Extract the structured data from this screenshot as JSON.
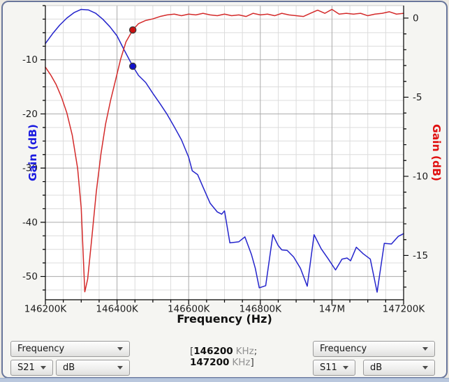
{
  "window": {
    "panel_bg": "#f5f5f2",
    "frame_border": "#68769b",
    "bottom_edge": "#b9c7dd"
  },
  "chart_data": {
    "type": "line",
    "title": "",
    "xlabel": "Frequency (Hz)",
    "x_axis": {
      "min": 146200,
      "max": 147200,
      "unit": "KHz",
      "minor_step": 50,
      "major_ticks": [
        {
          "value": 146200,
          "label": "146200K"
        },
        {
          "value": 146400,
          "label": "146400K"
        },
        {
          "value": 146600,
          "label": "146600K"
        },
        {
          "value": 146800,
          "label": "146800K"
        },
        {
          "value": 147000,
          "label": "147M"
        },
        {
          "value": 147200,
          "label": "147200K"
        }
      ]
    },
    "y_left": {
      "label": "Gain (dB)",
      "title_color": "#1a1ae0",
      "min": -54.3,
      "max": 0,
      "minor_step": 2.5,
      "major_ticks": [
        -10,
        -20,
        -30,
        -40,
        -50
      ]
    },
    "y_right": {
      "label": "Gain (dB)",
      "title_color": "#e01010",
      "min": -17.8,
      "max": 0.79,
      "minor_step": 1,
      "major_ticks": [
        0,
        -5,
        -10,
        -15
      ]
    },
    "grid": {
      "major_color": "#aaaaaa",
      "minor_color": "#dcdcdc",
      "top_border": "#c9c9c9"
    },
    "series": [
      {
        "name": "S21",
        "axis": "left",
        "color": "#2424cc",
        "points": [
          [
            146200,
            -7.0
          ],
          [
            146220,
            -5.2
          ],
          [
            146240,
            -3.6
          ],
          [
            146260,
            -2.3
          ],
          [
            146280,
            -1.3
          ],
          [
            146300,
            -0.7
          ],
          [
            146320,
            -0.8
          ],
          [
            146340,
            -1.4
          ],
          [
            146360,
            -2.5
          ],
          [
            146380,
            -3.9
          ],
          [
            146400,
            -5.6
          ],
          [
            146420,
            -8.2
          ],
          [
            146444,
            -11.2
          ],
          [
            146460,
            -12.9
          ],
          [
            146480,
            -14.2
          ],
          [
            146500,
            -16.2
          ],
          [
            146520,
            -18.1
          ],
          [
            146540,
            -20.1
          ],
          [
            146560,
            -22.4
          ],
          [
            146580,
            -24.8
          ],
          [
            146600,
            -28.0
          ],
          [
            146610,
            -30.5
          ],
          [
            146625,
            -31.2
          ],
          [
            146640,
            -33.5
          ],
          [
            146660,
            -36.5
          ],
          [
            146680,
            -38.1
          ],
          [
            146692,
            -38.5
          ],
          [
            146700,
            -37.9
          ],
          [
            146715,
            -43.8
          ],
          [
            146740,
            -43.6
          ],
          [
            146757,
            -42.7
          ],
          [
            146775,
            -45.9
          ],
          [
            146786,
            -48.5
          ],
          [
            146797,
            -52.1
          ],
          [
            146815,
            -51.7
          ],
          [
            146835,
            -42.3
          ],
          [
            146850,
            -44.3
          ],
          [
            146860,
            -45.1
          ],
          [
            146875,
            -45.2
          ],
          [
            146893,
            -46.4
          ],
          [
            146912,
            -48.5
          ],
          [
            146931,
            -51.8
          ],
          [
            146950,
            -42.3
          ],
          [
            146970,
            -44.9
          ],
          [
            146990,
            -46.8
          ],
          [
            147010,
            -48.8
          ],
          [
            147028,
            -46.8
          ],
          [
            147042,
            -46.6
          ],
          [
            147052,
            -47.1
          ],
          [
            147068,
            -44.6
          ],
          [
            147087,
            -45.8
          ],
          [
            147107,
            -46.8
          ],
          [
            147126,
            -52.9
          ],
          [
            147146,
            -43.9
          ],
          [
            147166,
            -44.0
          ],
          [
            147185,
            -42.6
          ],
          [
            147200,
            -42.1
          ]
        ]
      },
      {
        "name": "S11",
        "axis": "right",
        "color": "#d42a2a",
        "points": [
          [
            146200,
            -3.1
          ],
          [
            146215,
            -3.6
          ],
          [
            146230,
            -4.2
          ],
          [
            146245,
            -5.0
          ],
          [
            146260,
            -6.0
          ],
          [
            146275,
            -7.4
          ],
          [
            146290,
            -9.5
          ],
          [
            146300,
            -12.0
          ],
          [
            146310,
            -17.3
          ],
          [
            146318,
            -16.5
          ],
          [
            146330,
            -13.8
          ],
          [
            146342,
            -11.0
          ],
          [
            146355,
            -8.6
          ],
          [
            146368,
            -6.7
          ],
          [
            146382,
            -5.2
          ],
          [
            146395,
            -4.0
          ],
          [
            146410,
            -2.6
          ],
          [
            146425,
            -1.5
          ],
          [
            146444,
            -0.75
          ],
          [
            146460,
            -0.35
          ],
          [
            146480,
            -0.15
          ],
          [
            146500,
            -0.05
          ],
          [
            146520,
            0.1
          ],
          [
            146540,
            0.2
          ],
          [
            146560,
            0.25
          ],
          [
            146580,
            0.15
          ],
          [
            146600,
            0.25
          ],
          [
            146620,
            0.2
          ],
          [
            146640,
            0.3
          ],
          [
            146660,
            0.2
          ],
          [
            146680,
            0.15
          ],
          [
            146700,
            0.25
          ],
          [
            146720,
            0.15
          ],
          [
            146740,
            0.2
          ],
          [
            146760,
            0.1
          ],
          [
            146780,
            0.3
          ],
          [
            146800,
            0.2
          ],
          [
            146820,
            0.25
          ],
          [
            146840,
            0.15
          ],
          [
            146860,
            0.3
          ],
          [
            146880,
            0.2
          ],
          [
            146900,
            0.15
          ],
          [
            146920,
            0.1
          ],
          [
            146940,
            0.3
          ],
          [
            146960,
            0.5
          ],
          [
            146980,
            0.3
          ],
          [
            147000,
            0.55
          ],
          [
            147020,
            0.25
          ],
          [
            147040,
            0.3
          ],
          [
            147060,
            0.25
          ],
          [
            147080,
            0.3
          ],
          [
            147100,
            0.15
          ],
          [
            147120,
            0.25
          ],
          [
            147140,
            0.3
          ],
          [
            147160,
            0.4
          ],
          [
            147180,
            0.25
          ],
          [
            147200,
            0.3
          ]
        ]
      }
    ],
    "markers": [
      {
        "series": "S11",
        "axis": "right",
        "x": 146444,
        "y": -0.75,
        "color": "#cc1111"
      },
      {
        "series": "S21",
        "axis": "left",
        "x": 146444,
        "y": -11.2,
        "color": "#1111cc"
      }
    ]
  },
  "controls": {
    "left": {
      "x_var": "Frequency",
      "param": "S21",
      "unit": "dB"
    },
    "right": {
      "x_var": "Frequency",
      "param": "S11",
      "unit": "dB"
    },
    "range": {
      "prefix": "[",
      "start": "146200",
      "start_unit": "KHz",
      "start_sep": ";",
      "end": "147200",
      "end_unit": "KHz",
      "end_sep": "]"
    }
  }
}
